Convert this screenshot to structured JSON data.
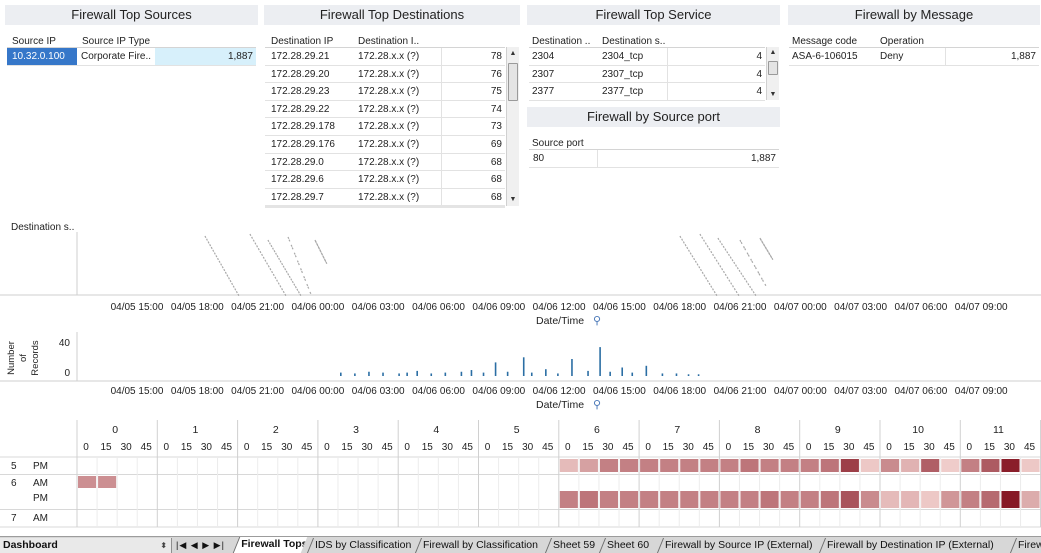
{
  "panels": {
    "sources": {
      "title": "Firewall Top Sources",
      "headers": [
        "Source IP",
        "Source IP Type"
      ],
      "rows": [
        {
          "ip": "10.32.0.100",
          "type": "Corporate Fire..",
          "count": "1,887"
        }
      ]
    },
    "destinations": {
      "title": "Firewall Top Destinations",
      "headers": [
        "Destination IP",
        "Destination I.."
      ],
      "rows": [
        {
          "ip": "172.28.29.21",
          "name": "172.28.x.x (?)",
          "count": "78"
        },
        {
          "ip": "172.28.29.20",
          "name": "172.28.x.x (?)",
          "count": "76"
        },
        {
          "ip": "172.28.29.23",
          "name": "172.28.x.x (?)",
          "count": "75"
        },
        {
          "ip": "172.28.29.22",
          "name": "172.28.x.x (?)",
          "count": "74"
        },
        {
          "ip": "172.28.29.178",
          "name": "172.28.x.x (?)",
          "count": "73"
        },
        {
          "ip": "172.28.29.176",
          "name": "172.28.x.x (?)",
          "count": "69"
        },
        {
          "ip": "172.28.29.0",
          "name": "172.28.x.x (?)",
          "count": "68"
        },
        {
          "ip": "172.28.29.6",
          "name": "172.28.x.x (?)",
          "count": "68"
        },
        {
          "ip": "172.28.29.7",
          "name": "172.28.x.x (?)",
          "count": "68"
        }
      ]
    },
    "service": {
      "title": "Firewall Top Service",
      "headers": [
        "Destination ..",
        "Destination s.."
      ],
      "rows": [
        {
          "port": "2304",
          "svc": "2304_tcp",
          "count": "4"
        },
        {
          "port": "2307",
          "svc": "2307_tcp",
          "count": "4"
        },
        {
          "port": "2377",
          "svc": "2377_tcp",
          "count": "4"
        }
      ]
    },
    "source_port": {
      "title": "Firewall by Source port",
      "headers": [
        "Source port"
      ],
      "rows": [
        {
          "port": "80",
          "count": "1,887"
        }
      ]
    },
    "message": {
      "title": "Firewall by Message",
      "headers": [
        "Message code",
        "Operation"
      ],
      "rows": [
        {
          "code": "ASA-6-106015",
          "op": "Deny",
          "count": "1,887"
        }
      ]
    }
  },
  "timeline": {
    "ylabel": "Destination s..",
    "xlabel": "Date/Time",
    "ticks": [
      "04/05 15:00",
      "04/05 18:00",
      "04/05 21:00",
      "04/06 00:00",
      "04/06 03:00",
      "04/06 06:00",
      "04/06 09:00",
      "04/06 12:00",
      "04/06 15:00",
      "04/06 18:00",
      "04/06 21:00",
      "04/07 00:00",
      "04/07 03:00",
      "04/07 06:00",
      "04/07 09:00"
    ]
  },
  "chart_data": [
    {
      "type": "bar",
      "ylabel": "Number of Records",
      "xlabel": "Date/Time",
      "yticks": [
        "40",
        "0"
      ],
      "ylim": [
        0,
        45
      ],
      "color": "#2b6ea4",
      "x_unit": "hours since 04/05 15:00",
      "x": [
        10.1,
        10.8,
        11.5,
        12.2,
        13.0,
        13.4,
        13.9,
        14.6,
        15.3,
        16.1,
        16.6,
        17.2,
        17.8,
        18.4,
        19.2,
        19.6,
        20.3,
        20.9,
        21.6,
        22.4,
        23.0,
        23.5,
        24.1,
        24.6,
        25.3,
        26.1,
        26.8,
        27.4,
        27.9,
        58.0,
        58.8,
        59.4,
        60.1,
        60.8,
        61.6,
        62.2,
        62.9,
        63.4,
        64.1,
        64.8,
        65.4,
        66.0,
        66.6,
        67.2,
        67.9,
        68.4,
        68.8,
        69.5,
        70.2,
        70.9,
        71.6
      ],
      "values": [
        4,
        3,
        5,
        4,
        3,
        4,
        6,
        3,
        4,
        5,
        7,
        4,
        16,
        5,
        22,
        4,
        8,
        3,
        20,
        6,
        34,
        5,
        10,
        4,
        12,
        3,
        3,
        2,
        2,
        5,
        4,
        6,
        5,
        4,
        5,
        3,
        6,
        5,
        4,
        7,
        5,
        8,
        11,
        5,
        18,
        22,
        14,
        6,
        44,
        9,
        3
      ]
    },
    {
      "type": "heatmap",
      "hours": [
        "0",
        "1",
        "2",
        "3",
        "4",
        "5",
        "6",
        "7",
        "8",
        "9",
        "10",
        "11"
      ],
      "minutes": [
        "0",
        "15",
        "30",
        "45"
      ],
      "rows": [
        {
          "day": "5",
          "ampm": "PM",
          "values": [
            null,
            null,
            null,
            null,
            null,
            null,
            null,
            null,
            null,
            null,
            null,
            null,
            null,
            null,
            null,
            null,
            null,
            null,
            null,
            null,
            null,
            null,
            null,
            null,
            0.18,
            0.3,
            0.45,
            0.45,
            0.45,
            0.45,
            0.45,
            0.45,
            0.45,
            0.5,
            0.45,
            0.45,
            0.45,
            0.5,
            0.75,
            0.12,
            0.4,
            0.22,
            0.6,
            0.1,
            0.45,
            0.62,
            0.9,
            0.12
          ]
        },
        {
          "day": "6",
          "ampm": "AM",
          "values": [
            0.38,
            0.38,
            null,
            null,
            null,
            null,
            null,
            null,
            null,
            null,
            null,
            null,
            null,
            null,
            null,
            null,
            null,
            null,
            null,
            null,
            null,
            null,
            null,
            null,
            null,
            null,
            null,
            null,
            null,
            null,
            null,
            null,
            null,
            null,
            null,
            null,
            null,
            null,
            null,
            null,
            null,
            null,
            null,
            null,
            null,
            null,
            null,
            null
          ]
        },
        {
          "day": "",
          "ampm": "PM",
          "values": [
            null,
            null,
            null,
            null,
            null,
            null,
            null,
            null,
            null,
            null,
            null,
            null,
            null,
            null,
            null,
            null,
            null,
            null,
            null,
            null,
            null,
            null,
            null,
            null,
            0.45,
            0.5,
            0.45,
            0.45,
            0.45,
            0.45,
            0.45,
            0.45,
            0.45,
            0.45,
            0.5,
            0.45,
            0.45,
            0.5,
            0.65,
            0.4,
            0.18,
            0.2,
            0.12,
            0.35,
            0.45,
            0.55,
            0.92,
            0.25
          ]
        },
        {
          "day": "7",
          "ampm": "AM",
          "values": [
            null,
            null,
            null,
            null,
            null,
            null,
            null,
            null,
            null,
            null,
            null,
            null,
            null,
            null,
            null,
            null,
            null,
            null,
            null,
            null,
            null,
            null,
            null,
            null,
            null,
            null,
            null,
            null,
            null,
            null,
            null,
            null,
            null,
            null,
            null,
            null,
            null,
            null,
            null,
            null,
            null,
            null,
            null,
            null,
            null,
            null,
            null,
            null
          ]
        }
      ]
    }
  ],
  "tabs": {
    "dashboard": "Dashboard",
    "items": [
      "Firewall Tops",
      "IDS by Classification",
      "Firewall by Classification",
      "Sheet 59",
      "Sheet 60",
      "Firewall by Source IP (External)",
      "Firewall by Destination IP (External)",
      "Firew"
    ]
  }
}
